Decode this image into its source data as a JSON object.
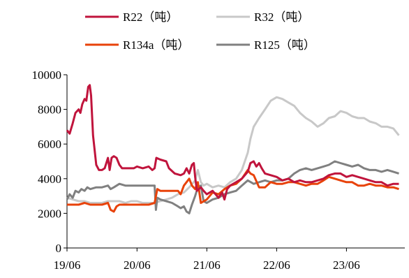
{
  "chart_data": {
    "type": "line",
    "title": "",
    "xlabel": "",
    "ylabel": "",
    "ylim": [
      0,
      10000
    ],
    "yticks": [
      0,
      2000,
      4000,
      6000,
      8000,
      10000
    ],
    "xtick_labels": [
      "19/06",
      "20/06",
      "21/06",
      "22/06",
      "23/06"
    ],
    "xlim": [
      "2019-06",
      "2024-04"
    ],
    "legend": "top",
    "grid": false,
    "series": [
      {
        "name": "R22（吨）",
        "color": "#C0143C",
        "points": [
          [
            "2019-06-01",
            6800
          ],
          [
            "2019-06-15",
            6600
          ],
          [
            "2019-07-01",
            7200
          ],
          [
            "2019-07-15",
            7800
          ],
          [
            "2019-08-01",
            8000
          ],
          [
            "2019-08-10",
            7800
          ],
          [
            "2019-08-20",
            8300
          ],
          [
            "2019-09-01",
            8600
          ],
          [
            "2019-09-10",
            8500
          ],
          [
            "2019-09-20",
            9300
          ],
          [
            "2019-09-28",
            9400
          ],
          [
            "2019-10-05",
            8800
          ],
          [
            "2019-10-15",
            6500
          ],
          [
            "2019-11-01",
            4800
          ],
          [
            "2019-11-15",
            4500
          ],
          [
            "2019-12-01",
            4500
          ],
          [
            "2019-12-15",
            4600
          ],
          [
            "2020-01-01",
            5200
          ],
          [
            "2020-01-10",
            4500
          ],
          [
            "2020-01-20",
            5200
          ],
          [
            "2020-02-01",
            5300
          ],
          [
            "2020-02-15",
            5200
          ],
          [
            "2020-03-01",
            4800
          ],
          [
            "2020-03-15",
            4600
          ],
          [
            "2020-04-15",
            4600
          ],
          [
            "2020-05-15",
            4600
          ],
          [
            "2020-06-01",
            4700
          ],
          [
            "2020-07-01",
            4600
          ],
          [
            "2020-08-01",
            4700
          ],
          [
            "2020-08-20",
            4500
          ],
          [
            "2020-09-01",
            4600
          ],
          [
            "2020-09-10",
            5200
          ],
          [
            "2020-10-01",
            5100
          ],
          [
            "2020-11-01",
            5000
          ],
          [
            "2020-11-15",
            4600
          ],
          [
            "2020-12-15",
            4300
          ],
          [
            "2021-01-15",
            4200
          ],
          [
            "2021-02-01",
            4300
          ],
          [
            "2021-02-15",
            4600
          ],
          [
            "2021-03-01",
            4300
          ],
          [
            "2021-03-15",
            4800
          ],
          [
            "2021-03-25",
            4900
          ],
          [
            "2021-04-01",
            4100
          ],
          [
            "2021-04-10",
            3300
          ],
          [
            "2021-05-01",
            3500
          ],
          [
            "2021-05-15",
            3300
          ],
          [
            "2021-06-01",
            3100
          ],
          [
            "2021-07-01",
            3300
          ],
          [
            "2021-08-01",
            2900
          ],
          [
            "2021-08-20",
            3200
          ],
          [
            "2021-09-01",
            2800
          ],
          [
            "2021-09-15",
            3400
          ],
          [
            "2021-10-01",
            3600
          ],
          [
            "2021-11-01",
            3800
          ],
          [
            "2021-12-01",
            4000
          ],
          [
            "2022-01-01",
            4400
          ],
          [
            "2022-01-15",
            4900
          ],
          [
            "2022-02-01",
            5000
          ],
          [
            "2022-02-15",
            4700
          ],
          [
            "2022-03-01",
            4900
          ],
          [
            "2022-03-15",
            4600
          ],
          [
            "2022-04-01",
            4300
          ],
          [
            "2022-05-01",
            4200
          ],
          [
            "2022-06-01",
            4100
          ],
          [
            "2022-07-01",
            3900
          ],
          [
            "2022-08-01",
            4000
          ],
          [
            "2022-09-01",
            3800
          ],
          [
            "2022-10-01",
            3900
          ],
          [
            "2022-11-01",
            3800
          ],
          [
            "2022-12-01",
            3800
          ],
          [
            "2023-01-01",
            3900
          ],
          [
            "2023-02-01",
            4000
          ],
          [
            "2023-03-01",
            4200
          ],
          [
            "2023-04-01",
            4300
          ],
          [
            "2023-05-01",
            4300
          ],
          [
            "2023-06-01",
            4100
          ],
          [
            "2023-07-01",
            4200
          ],
          [
            "2023-08-01",
            4100
          ],
          [
            "2023-09-01",
            4000
          ],
          [
            "2023-10-01",
            3900
          ],
          [
            "2023-11-01",
            3800
          ],
          [
            "2023-12-01",
            3800
          ],
          [
            "2024-01-01",
            3600
          ],
          [
            "2024-02-01",
            3700
          ],
          [
            "2024-03-01",
            3700
          ]
        ]
      },
      {
        "name": "R32（吨）",
        "color": "#C8C8C8",
        "points": [
          [
            "2019-06-01",
            2900
          ],
          [
            "2019-07-01",
            2800
          ],
          [
            "2019-08-01",
            2700
          ],
          [
            "2019-09-01",
            2700
          ],
          [
            "2019-10-01",
            2600
          ],
          [
            "2019-11-01",
            2600
          ],
          [
            "2019-12-01",
            2600
          ],
          [
            "2020-01-01",
            2700
          ],
          [
            "2020-02-01",
            2700
          ],
          [
            "2020-03-01",
            2700
          ],
          [
            "2020-04-01",
            2600
          ],
          [
            "2020-05-01",
            2700
          ],
          [
            "2020-06-01",
            2700
          ],
          [
            "2020-07-01",
            2600
          ],
          [
            "2020-08-01",
            2600
          ],
          [
            "2020-09-01",
            2600
          ],
          [
            "2020-10-01",
            2700
          ],
          [
            "2020-11-01",
            2800
          ],
          [
            "2020-12-01",
            2900
          ],
          [
            "2021-01-01",
            3100
          ],
          [
            "2021-02-01",
            3200
          ],
          [
            "2021-03-01",
            3500
          ],
          [
            "2021-04-01",
            3900
          ],
          [
            "2021-04-15",
            4500
          ],
          [
            "2021-05-01",
            3800
          ],
          [
            "2021-05-15",
            3600
          ],
          [
            "2021-06-01",
            3700
          ],
          [
            "2021-07-01",
            3500
          ],
          [
            "2021-08-01",
            3600
          ],
          [
            "2021-09-01",
            3500
          ],
          [
            "2021-10-01",
            3800
          ],
          [
            "2021-11-01",
            4000
          ],
          [
            "2021-12-01",
            4500
          ],
          [
            "2022-01-01",
            5500
          ],
          [
            "2022-01-15",
            6300
          ],
          [
            "2022-02-01",
            7000
          ],
          [
            "2022-03-01",
            7500
          ],
          [
            "2022-04-01",
            8000
          ],
          [
            "2022-05-01",
            8500
          ],
          [
            "2022-06-01",
            8700
          ],
          [
            "2022-07-01",
            8600
          ],
          [
            "2022-08-01",
            8400
          ],
          [
            "2022-09-01",
            8200
          ],
          [
            "2022-10-01",
            7800
          ],
          [
            "2022-11-01",
            7500
          ],
          [
            "2022-12-01",
            7300
          ],
          [
            "2023-01-01",
            7000
          ],
          [
            "2023-02-01",
            7200
          ],
          [
            "2023-03-01",
            7500
          ],
          [
            "2023-04-01",
            7600
          ],
          [
            "2023-05-01",
            7900
          ],
          [
            "2023-06-01",
            7800
          ],
          [
            "2023-07-01",
            7600
          ],
          [
            "2023-08-01",
            7500
          ],
          [
            "2023-09-01",
            7500
          ],
          [
            "2023-10-01",
            7300
          ],
          [
            "2023-11-01",
            7200
          ],
          [
            "2023-12-01",
            7000
          ],
          [
            "2024-01-01",
            7000
          ],
          [
            "2024-02-01",
            6900
          ],
          [
            "2024-03-01",
            6500
          ]
        ]
      },
      {
        "name": "R134a（吨）",
        "color": "#E8420A",
        "points": [
          [
            "2019-06-01",
            2500
          ],
          [
            "2019-07-01",
            2500
          ],
          [
            "2019-08-01",
            2500
          ],
          [
            "2019-09-01",
            2600
          ],
          [
            "2019-10-01",
            2500
          ],
          [
            "2019-11-01",
            2500
          ],
          [
            "2019-12-01",
            2500
          ],
          [
            "2020-01-01",
            2600
          ],
          [
            "2020-01-15",
            2200
          ],
          [
            "2020-02-01",
            2100
          ],
          [
            "2020-02-15",
            2400
          ],
          [
            "2020-03-01",
            2500
          ],
          [
            "2020-04-01",
            2500
          ],
          [
            "2020-05-01",
            2500
          ],
          [
            "2020-06-01",
            2500
          ],
          [
            "2020-07-01",
            2500
          ],
          [
            "2020-08-01",
            2500
          ],
          [
            "2020-09-01",
            2600
          ],
          [
            "2020-09-15",
            3400
          ],
          [
            "2020-10-01",
            3300
          ],
          [
            "2020-11-01",
            3300
          ],
          [
            "2020-12-01",
            3300
          ],
          [
            "2021-01-01",
            3300
          ],
          [
            "2021-01-15",
            3100
          ],
          [
            "2021-02-01",
            3600
          ],
          [
            "2021-03-01",
            4000
          ],
          [
            "2021-03-15",
            3600
          ],
          [
            "2021-04-01",
            3400
          ],
          [
            "2021-04-15",
            3800
          ],
          [
            "2021-05-01",
            2600
          ],
          [
            "2021-06-01",
            2800
          ],
          [
            "2021-07-01",
            3200
          ],
          [
            "2021-08-01",
            3100
          ],
          [
            "2021-09-01",
            3400
          ],
          [
            "2021-10-01",
            3600
          ],
          [
            "2021-11-01",
            3700
          ],
          [
            "2021-12-01",
            4000
          ],
          [
            "2022-01-01",
            4500
          ],
          [
            "2022-01-15",
            4300
          ],
          [
            "2022-02-01",
            4200
          ],
          [
            "2022-03-01",
            3500
          ],
          [
            "2022-04-01",
            3500
          ],
          [
            "2022-05-01",
            3800
          ],
          [
            "2022-06-01",
            3700
          ],
          [
            "2022-07-01",
            3700
          ],
          [
            "2022-08-01",
            3800
          ],
          [
            "2022-09-01",
            3800
          ],
          [
            "2022-10-01",
            3700
          ],
          [
            "2022-11-01",
            3600
          ],
          [
            "2022-12-01",
            3700
          ],
          [
            "2023-01-01",
            3700
          ],
          [
            "2023-02-01",
            3900
          ],
          [
            "2023-03-01",
            4100
          ],
          [
            "2023-04-01",
            4000
          ],
          [
            "2023-05-01",
            3900
          ],
          [
            "2023-06-01",
            3800
          ],
          [
            "2023-07-01",
            3800
          ],
          [
            "2023-08-01",
            3600
          ],
          [
            "2023-09-01",
            3600
          ],
          [
            "2023-10-01",
            3700
          ],
          [
            "2023-11-01",
            3600
          ],
          [
            "2023-12-01",
            3600
          ],
          [
            "2024-01-01",
            3500
          ],
          [
            "2024-02-01",
            3500
          ],
          [
            "2024-03-01",
            3400
          ]
        ]
      },
      {
        "name": "R125（吨）",
        "color": "#808080",
        "points": [
          [
            "2019-06-01",
            2800
          ],
          [
            "2019-06-15",
            3100
          ],
          [
            "2019-07-01",
            2900
          ],
          [
            "2019-07-15",
            3300
          ],
          [
            "2019-08-01",
            3200
          ],
          [
            "2019-08-15",
            3400
          ],
          [
            "2019-09-01",
            3300
          ],
          [
            "2019-09-15",
            3500
          ],
          [
            "2019-10-01",
            3400
          ],
          [
            "2019-11-01",
            3500
          ],
          [
            "2019-12-01",
            3500
          ],
          [
            "2020-01-01",
            3600
          ],
          [
            "2020-01-15",
            3400
          ],
          [
            "2020-02-01",
            3500
          ],
          [
            "2020-03-01",
            3700
          ],
          [
            "2020-04-01",
            3600
          ],
          [
            "2020-05-01",
            3600
          ],
          [
            "2020-06-01",
            3600
          ],
          [
            "2020-07-01",
            3600
          ],
          [
            "2020-08-01",
            3600
          ],
          [
            "2020-09-01",
            3600
          ],
          [
            "2020-09-08",
            2200
          ],
          [
            "2020-09-15",
            2900
          ],
          [
            "2020-10-01",
            2800
          ],
          [
            "2020-11-01",
            2700
          ],
          [
            "2020-12-01",
            2600
          ],
          [
            "2021-01-01",
            2400
          ],
          [
            "2021-01-15",
            2300
          ],
          [
            "2021-02-01",
            2400
          ],
          [
            "2021-02-15",
            2100
          ],
          [
            "2021-03-01",
            2000
          ],
          [
            "2021-03-15",
            2500
          ],
          [
            "2021-04-01",
            3000
          ],
          [
            "2021-04-15",
            3500
          ],
          [
            "2021-05-01",
            3600
          ],
          [
            "2021-05-15",
            2700
          ],
          [
            "2021-06-01",
            2600
          ],
          [
            "2021-07-01",
            2800
          ],
          [
            "2021-08-01",
            2900
          ],
          [
            "2021-09-01",
            3100
          ],
          [
            "2021-10-01",
            3200
          ],
          [
            "2021-11-01",
            3300
          ],
          [
            "2021-12-01",
            3600
          ],
          [
            "2022-01-01",
            3900
          ],
          [
            "2022-02-01",
            3700
          ],
          [
            "2022-03-01",
            3800
          ],
          [
            "2022-04-01",
            3900
          ],
          [
            "2022-05-01",
            3800
          ],
          [
            "2022-06-01",
            3900
          ],
          [
            "2022-07-01",
            3900
          ],
          [
            "2022-08-01",
            4000
          ],
          [
            "2022-09-01",
            4300
          ],
          [
            "2022-10-01",
            4500
          ],
          [
            "2022-11-01",
            4600
          ],
          [
            "2022-12-01",
            4500
          ],
          [
            "2023-01-01",
            4600
          ],
          [
            "2023-02-01",
            4700
          ],
          [
            "2023-03-01",
            4800
          ],
          [
            "2023-04-01",
            5000
          ],
          [
            "2023-05-01",
            4900
          ],
          [
            "2023-06-01",
            4800
          ],
          [
            "2023-07-01",
            4700
          ],
          [
            "2023-08-01",
            4800
          ],
          [
            "2023-09-01",
            4600
          ],
          [
            "2023-10-01",
            4500
          ],
          [
            "2023-11-01",
            4500
          ],
          [
            "2023-12-01",
            4400
          ],
          [
            "2024-01-01",
            4500
          ],
          [
            "2024-02-01",
            4400
          ],
          [
            "2024-03-01",
            4300
          ]
        ]
      }
    ]
  }
}
